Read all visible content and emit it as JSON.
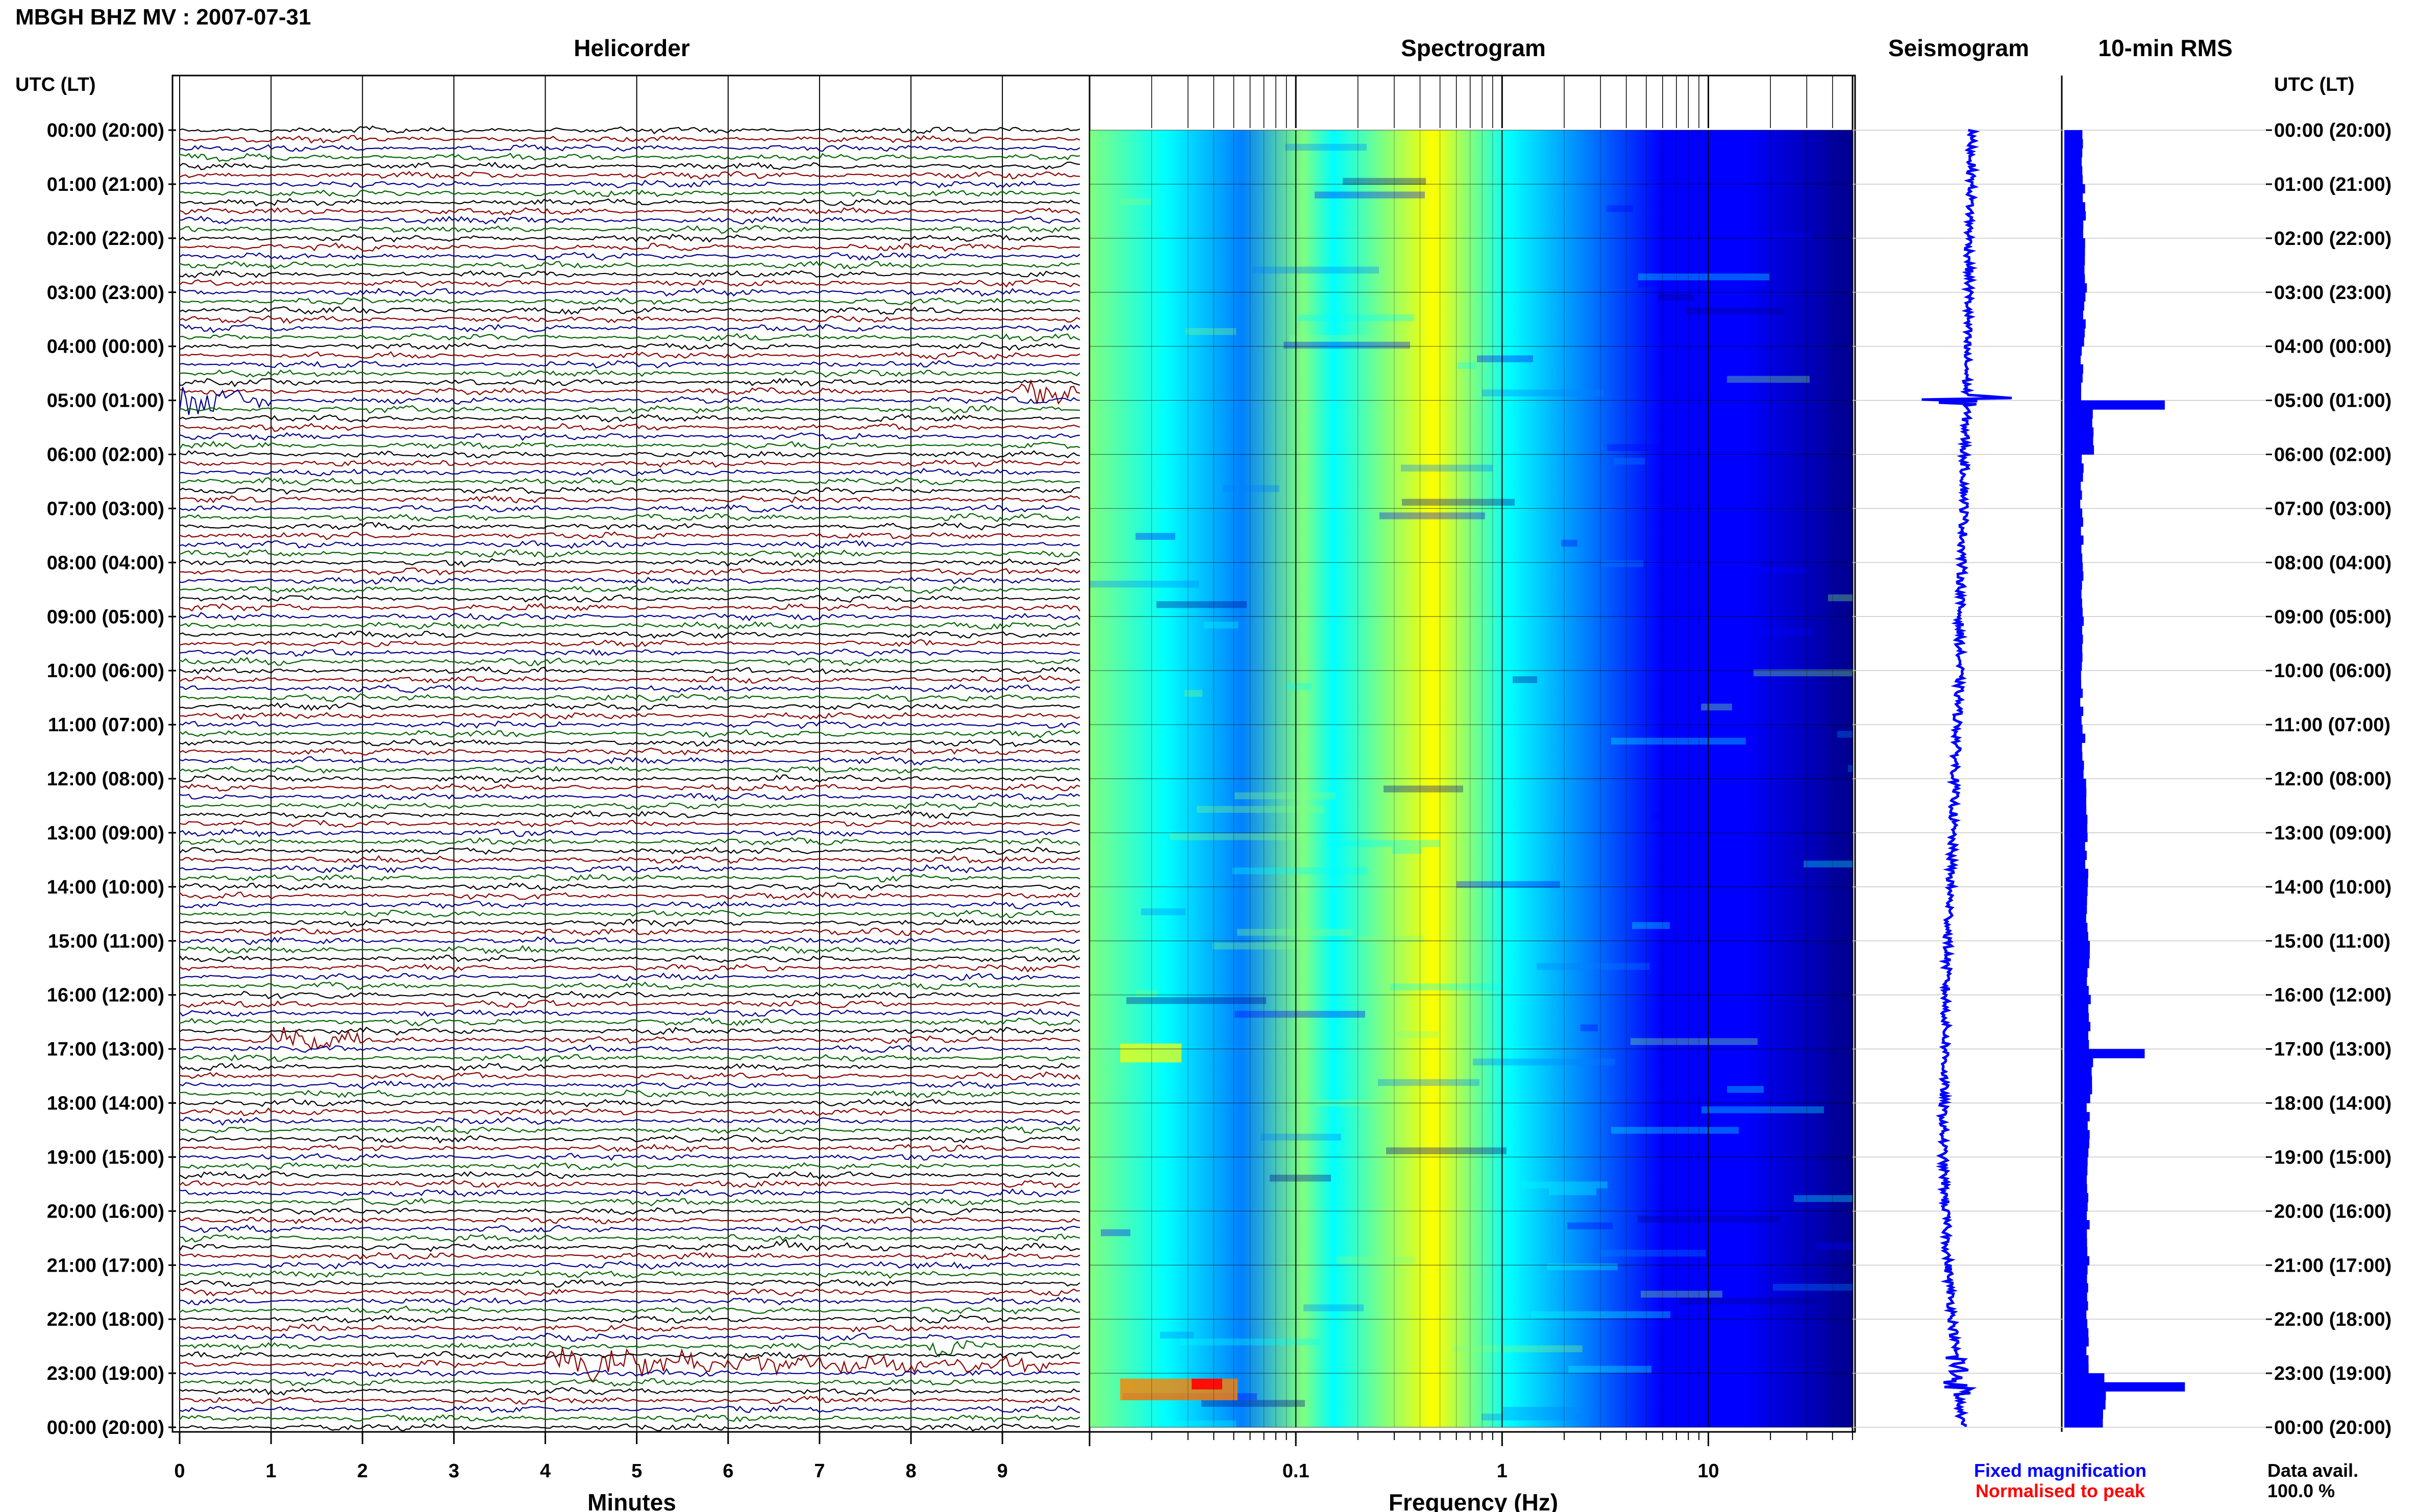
{
  "page": {
    "title": "MBGH BHZ MV : 2007-07-31",
    "left_axis_header": "UTC (LT)",
    "right_axis_header": "UTC (LT)"
  },
  "helicorder": {
    "title": "Helicorder",
    "xlabel": "Minutes",
    "x_ticks": [
      "0",
      "1",
      "2",
      "3",
      "4",
      "5",
      "6",
      "7",
      "8",
      "9"
    ],
    "xlim": [
      0,
      10
    ],
    "trace_colors": [
      "#000000",
      "#8b0000",
      "#00008b",
      "#006400"
    ],
    "traces_per_hour": 6,
    "events": [
      {
        "hour": 5,
        "trace": 0,
        "minute_start": 0.0,
        "minute_end": 1.0,
        "color": "#00008b",
        "amp": 1.0
      },
      {
        "hour": 4,
        "trace": 5,
        "minute_start": 9.2,
        "minute_end": 9.9,
        "color": "#8b0000",
        "amp": 1.0
      },
      {
        "hour": 16,
        "trace": 5,
        "minute_start": 1.0,
        "minute_end": 2.1,
        "color": "#006400",
        "amp": 0.6
      },
      {
        "hour": 20,
        "trace": 4,
        "minute_start": 6.5,
        "minute_end": 7.8,
        "color": "#8b0000",
        "amp": 0.3
      },
      {
        "hour": 22,
        "trace": 3,
        "minute_start": 8.2,
        "minute_end": 9.0,
        "color": "#8b0000",
        "amp": 0.6
      },
      {
        "hour": 22,
        "trace": 5,
        "minute_start": 4.0,
        "minute_end": 9.5,
        "color": "#006400",
        "amp": 0.8
      }
    ]
  },
  "spectrogram": {
    "title": "Spectrogram",
    "xlabel": "Frequency (Hz)",
    "x_ticks": [
      "0.1",
      "1",
      "10"
    ],
    "x_tick_values": [
      0.1,
      1,
      10
    ],
    "xlim": [
      0.01,
      50
    ],
    "scale": "log",
    "colormap": [
      "#00008b",
      "#0000ff",
      "#0080ff",
      "#00ffff",
      "#80ff80",
      "#ffff00",
      "#ff8000",
      "#ff0000"
    ]
  },
  "seismogram": {
    "title": "Seismogram",
    "color": "#0000ff",
    "offsets": [
      0.05,
      0.05,
      0.04,
      0.04,
      0.03,
      0.03,
      0.02,
      0.02,
      0.01,
      0.0,
      0.0,
      -0.01,
      -0.02,
      -0.03,
      -0.04,
      -0.05,
      -0.06,
      -0.06,
      -0.07,
      -0.07,
      -0.06,
      -0.05,
      -0.03,
      -0.01,
      0.01
    ]
  },
  "rms": {
    "title": "10-min RMS",
    "color": "#0000ff",
    "hourly_levels": [
      0.22,
      0.25,
      0.26,
      0.25,
      0.22,
      0.35,
      0.22,
      0.22,
      0.22,
      0.22,
      0.22,
      0.24,
      0.27,
      0.28,
      0.29,
      0.3,
      0.32,
      0.34,
      0.3,
      0.3,
      0.3,
      0.28,
      0.29,
      0.5
    ],
    "peaks": [
      {
        "hour": 5.0,
        "value": 0.5
      },
      {
        "hour": 17.0,
        "value": 0.4
      },
      {
        "hour": 23.1,
        "value": 0.6
      }
    ]
  },
  "time_labels": [
    "00:00 (20:00)",
    "01:00 (21:00)",
    "02:00 (22:00)",
    "03:00 (23:00)",
    "04:00 (00:00)",
    "05:00 (01:00)",
    "06:00 (02:00)",
    "07:00 (03:00)",
    "08:00 (04:00)",
    "09:00 (05:00)",
    "10:00 (06:00)",
    "11:00 (07:00)",
    "12:00 (08:00)",
    "13:00 (09:00)",
    "14:00 (10:00)",
    "15:00 (11:00)",
    "16:00 (12:00)",
    "17:00 (13:00)",
    "18:00 (14:00)",
    "19:00 (15:00)",
    "20:00 (16:00)",
    "21:00 (17:00)",
    "22:00 (18:00)",
    "23:00 (19:00)",
    "00:00 (20:00)"
  ],
  "legend": {
    "fixed": "Fixed magnification",
    "normalised": "Normalised to peak",
    "fixed_color": "#0000ff",
    "normalised_color": "#ff0000"
  },
  "data_avail": {
    "label": "Data avail.",
    "value": "100.0 %"
  },
  "chart_data": [
    {
      "type": "line",
      "title": "Helicorder",
      "xlabel": "Minutes",
      "ylabel": "UTC (LT)",
      "xlim": [
        0,
        10
      ],
      "x_ticks": [
        0,
        1,
        2,
        3,
        4,
        5,
        6,
        7,
        8,
        9
      ],
      "y_ticks": [
        "00:00 (20:00)",
        "01:00 (21:00)",
        "02:00 (22:00)",
        "03:00 (23:00)",
        "04:00 (00:00)",
        "05:00 (01:00)",
        "06:00 (02:00)",
        "07:00 (03:00)",
        "08:00 (04:00)",
        "09:00 (05:00)",
        "10:00 (06:00)",
        "11:00 (07:00)",
        "12:00 (08:00)",
        "13:00 (09:00)",
        "14:00 (10:00)",
        "15:00 (11:00)",
        "16:00 (12:00)",
        "17:00 (13:00)",
        "18:00 (14:00)",
        "19:00 (15:00)",
        "20:00 (16:00)",
        "21:00 (17:00)",
        "22:00 (18:00)",
        "23:00 (19:00)",
        "00:00 (20:00)"
      ]
    },
    {
      "type": "heatmap",
      "title": "Spectrogram",
      "xlabel": "Frequency (Hz)",
      "xlim": [
        0.01,
        50
      ],
      "x_scale": "log",
      "x_ticks": [
        0.1,
        1,
        10
      ]
    },
    {
      "type": "line",
      "title": "Seismogram"
    },
    {
      "type": "bar",
      "title": "10-min RMS",
      "orientation": "horizontal"
    }
  ]
}
